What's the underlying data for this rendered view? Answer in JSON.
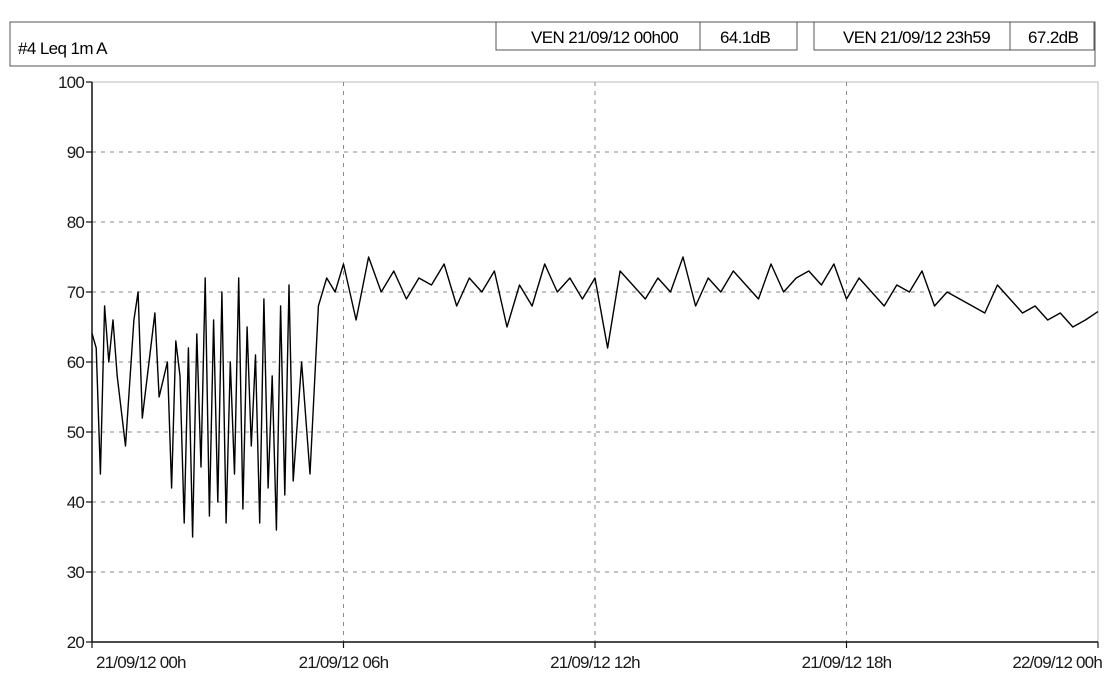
{
  "chart_data": {
    "type": "line",
    "title": "#4 Leq 1m A",
    "header": {
      "start_label": "VEN 21/09/12 00h00",
      "start_value": "64.1dB",
      "end_label": "VEN 21/09/12 23h59",
      "end_value": "67.2dB"
    },
    "xlabel": "",
    "ylabel": "",
    "x_range": [
      "21/09/12 00h",
      "22/09/12 00h"
    ],
    "x_range_hours": [
      0,
      24
    ],
    "ylim": [
      20,
      100
    ],
    "grid": true,
    "y_ticks": [
      "100",
      "90",
      "80",
      "70",
      "60",
      "50",
      "40",
      "30",
      "20"
    ],
    "x_ticks": [
      "21/09/12 00h",
      "21/09/12 06h",
      "21/09/12 12h",
      "21/09/12 18h",
      "22/09/12 00h"
    ],
    "series": [
      {
        "color": "#000000",
        "x_hours": [
          0,
          0.1,
          0.2,
          0.3,
          0.4,
          0.5,
          0.6,
          0.8,
          1,
          1.1,
          1.2,
          1.4,
          1.5,
          1.6,
          1.8,
          1.9,
          2,
          2.1,
          2.2,
          2.3,
          2.4,
          2.5,
          2.6,
          2.7,
          2.8,
          2.9,
          3,
          3.1,
          3.2,
          3.3,
          3.4,
          3.5,
          3.6,
          3.7,
          3.8,
          3.9,
          4,
          4.1,
          4.2,
          4.3,
          4.4,
          4.5,
          4.6,
          4.7,
          4.8,
          5,
          5.2,
          5.4,
          5.6,
          5.8,
          6,
          6.3,
          6.6,
          6.9,
          7.2,
          7.5,
          7.8,
          8.1,
          8.4,
          8.7,
          9,
          9.3,
          9.6,
          9.9,
          10.2,
          10.5,
          10.8,
          11.1,
          11.4,
          11.7,
          12,
          12.3,
          12.6,
          12.9,
          13.2,
          13.5,
          13.8,
          14.1,
          14.4,
          14.7,
          15,
          15.3,
          15.6,
          15.9,
          16.2,
          16.5,
          16.8,
          17.1,
          17.4,
          17.7,
          18,
          18.3,
          18.6,
          18.9,
          19.2,
          19.5,
          19.8,
          20.1,
          20.4,
          20.7,
          21,
          21.3,
          21.6,
          21.9,
          22.2,
          22.5,
          22.8,
          23.1,
          23.4,
          23.7,
          24
        ],
        "y_db": [
          64.1,
          62,
          44,
          68,
          60,
          66,
          58,
          48,
          66,
          70,
          52,
          62,
          67,
          55,
          60,
          42,
          63,
          58,
          37,
          62,
          35,
          64,
          45,
          72,
          38,
          66,
          40,
          70,
          37,
          60,
          44,
          72,
          39,
          65,
          48,
          61,
          37,
          69,
          42,
          58,
          36,
          68,
          41,
          71,
          43,
          60,
          44,
          68,
          72,
          70,
          74,
          66,
          75,
          70,
          73,
          69,
          72,
          71,
          74,
          68,
          72,
          70,
          73,
          65,
          71,
          68,
          74,
          70,
          72,
          69,
          72,
          62,
          73,
          71,
          69,
          72,
          70,
          75,
          68,
          72,
          70,
          73,
          71,
          69,
          74,
          70,
          72,
          73,
          71,
          74,
          69,
          72,
          70,
          68,
          71,
          70,
          73,
          68,
          70,
          69,
          68,
          67,
          71,
          69,
          67,
          68,
          66,
          67,
          65,
          66,
          67.2
        ]
      }
    ]
  }
}
